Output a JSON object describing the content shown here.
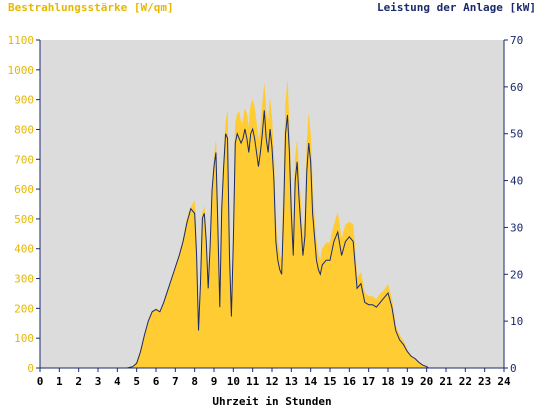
{
  "chart_data": {
    "type": "area",
    "ylabel_left": "Bestrahlungsstärke [W/qm]",
    "ylabel_right": "Leistung der Anlage [kW]",
    "xlabel": "Uhrzeit in Stunden",
    "xlim": [
      0,
      24
    ],
    "ylim_left": [
      0,
      1100
    ],
    "ylim_right": [
      0,
      70
    ],
    "x_ticks": [
      "0",
      "1",
      "2",
      "3",
      "4",
      "5",
      "6",
      "7",
      "8",
      "9",
      "10",
      "11",
      "12",
      "13",
      "14",
      "15",
      "16",
      "17",
      "18",
      "19",
      "20",
      "21",
      "22",
      "23",
      "24"
    ],
    "y_ticks_left": [
      "0",
      "100",
      "200",
      "300",
      "400",
      "500",
      "600",
      "700",
      "800",
      "900",
      "1000",
      "1100"
    ],
    "y_ticks_right": [
      "0",
      "10",
      "20",
      "30",
      "40",
      "50",
      "60",
      "70"
    ],
    "grid": false,
    "colors": {
      "irradiance_fill": "#ffcc33",
      "power_line": "#1a2a6c",
      "plot_background": "#dcdcdc",
      "left_axis_text": "#e6b800",
      "right_axis_text": "#1a2a6c",
      "axis_line": "#1a2a6c"
    },
    "series": [
      {
        "axis": "left",
        "x": [
          0,
          4.5,
          4.8,
          5.0,
          5.2,
          5.4,
          5.6,
          5.8,
          6.0,
          6.2,
          6.4,
          6.6,
          6.8,
          7.0,
          7.2,
          7.4,
          7.6,
          7.8,
          8.0,
          8.1,
          8.2,
          8.3,
          8.4,
          8.5,
          8.6,
          8.7,
          8.8,
          8.9,
          9.0,
          9.1,
          9.2,
          9.3,
          9.4,
          9.5,
          9.6,
          9.7,
          9.8,
          9.9,
          10.0,
          10.1,
          10.2,
          10.3,
          10.4,
          10.5,
          10.6,
          10.7,
          10.8,
          10.9,
          11.0,
          11.1,
          11.2,
          11.3,
          11.4,
          11.5,
          11.6,
          11.7,
          11.8,
          11.9,
          12.0,
          12.1,
          12.2,
          12.3,
          12.4,
          12.5,
          12.6,
          12.7,
          12.8,
          12.9,
          13.0,
          13.1,
          13.2,
          13.3,
          13.4,
          13.5,
          13.6,
          13.7,
          13.8,
          13.9,
          14.0,
          14.1,
          14.2,
          14.3,
          14.4,
          14.5,
          14.6,
          14.8,
          15.0,
          15.2,
          15.4,
          15.6,
          15.8,
          16.0,
          16.2,
          16.4,
          16.6,
          16.8,
          17.0,
          17.2,
          17.4,
          17.6,
          17.8,
          18.0,
          18.2,
          18.4,
          18.6,
          18.8,
          19.0,
          19.2,
          19.4,
          19.6,
          19.8,
          20.0,
          20.1,
          20.3,
          24
        ],
        "values": [
          0,
          0,
          5,
          20,
          60,
          110,
          150,
          190,
          200,
          190,
          220,
          260,
          300,
          340,
          380,
          430,
          500,
          540,
          560,
          400,
          150,
          300,
          520,
          540,
          430,
          300,
          420,
          600,
          700,
          760,
          500,
          240,
          560,
          700,
          820,
          860,
          400,
          200,
          450,
          820,
          850,
          860,
          820,
          830,
          870,
          850,
          800,
          880,
          900,
          870,
          820,
          760,
          800,
          880,
          950,
          860,
          820,
          900,
          830,
          700,
          480,
          420,
          380,
          360,
          600,
          880,
          960,
          800,
          580,
          420,
          700,
          760,
          640,
          540,
          430,
          500,
          750,
          850,
          780,
          600,
          500,
          420,
          380,
          360,
          400,
          420,
          420,
          480,
          520,
          430,
          480,
          490,
          480,
          300,
          320,
          250,
          240,
          240,
          230,
          250,
          260,
          280,
          230,
          140,
          110,
          90,
          60,
          40,
          30,
          20,
          10,
          5,
          0,
          0,
          0
        ]
      },
      {
        "axis": "right",
        "x": [
          0,
          4.5,
          4.8,
          5.0,
          5.2,
          5.4,
          5.6,
          5.8,
          6.0,
          6.2,
          6.4,
          6.6,
          6.8,
          7.0,
          7.2,
          7.4,
          7.6,
          7.8,
          8.0,
          8.1,
          8.2,
          8.3,
          8.4,
          8.5,
          8.6,
          8.7,
          8.8,
          8.9,
          9.0,
          9.1,
          9.2,
          9.3,
          9.4,
          9.5,
          9.6,
          9.7,
          9.8,
          9.9,
          10.0,
          10.1,
          10.2,
          10.3,
          10.4,
          10.5,
          10.6,
          10.7,
          10.8,
          10.9,
          11.0,
          11.1,
          11.2,
          11.3,
          11.4,
          11.5,
          11.6,
          11.7,
          11.8,
          11.9,
          12.0,
          12.1,
          12.2,
          12.3,
          12.4,
          12.5,
          12.6,
          12.7,
          12.8,
          12.9,
          13.0,
          13.1,
          13.2,
          13.3,
          13.4,
          13.5,
          13.6,
          13.7,
          13.8,
          13.9,
          14.0,
          14.1,
          14.2,
          14.3,
          14.4,
          14.5,
          14.6,
          14.8,
          15.0,
          15.2,
          15.4,
          15.6,
          15.8,
          16.0,
          16.2,
          16.4,
          16.6,
          16.8,
          17.0,
          17.2,
          17.4,
          17.6,
          17.8,
          18.0,
          18.2,
          18.4,
          18.6,
          18.8,
          19.0,
          19.2,
          19.4,
          19.6,
          19.8,
          20.0,
          20.1,
          20.3,
          24
        ],
        "values": [
          0,
          0,
          0.3,
          1,
          3.5,
          7,
          10,
          12,
          12.5,
          12,
          14,
          16.5,
          19,
          21.5,
          24,
          27,
          31,
          34,
          33,
          24,
          8,
          18,
          32,
          33,
          27,
          17,
          26,
          38,
          43,
          46,
          30,
          13,
          34,
          43,
          50,
          49,
          24,
          11,
          27,
          48,
          50,
          49,
          48,
          49,
          51,
          49,
          46,
          50,
          51,
          49,
          46,
          43,
          46,
          50,
          55,
          49,
          46,
          51,
          47,
          40,
          27,
          23,
          21,
          20,
          33,
          50,
          54,
          46,
          33,
          24,
          40,
          44,
          36,
          30,
          24,
          28,
          42,
          48,
          44,
          33,
          28,
          23,
          21,
          20,
          22,
          23,
          23,
          27,
          29,
          24,
          27,
          28,
          27,
          17,
          18,
          14,
          13.5,
          13.5,
          13,
          14,
          15,
          16,
          13,
          8,
          6,
          5,
          3.5,
          2.5,
          2,
          1.2,
          0.6,
          0.3,
          0,
          0,
          0
        ]
      }
    ]
  }
}
